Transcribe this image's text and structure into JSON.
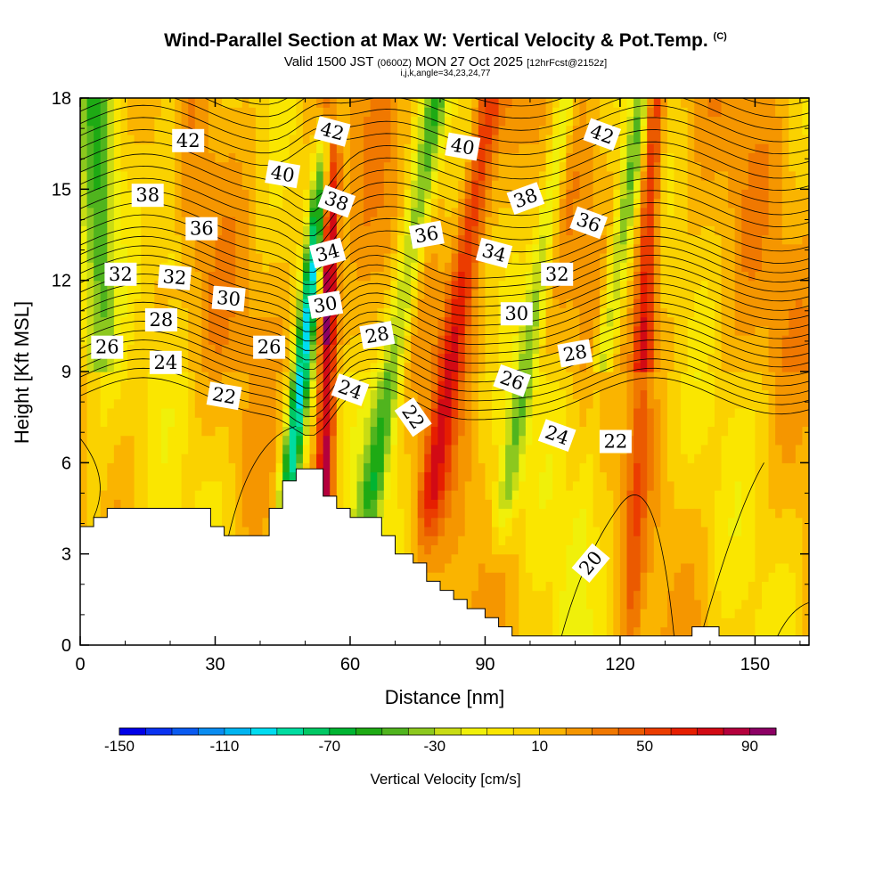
{
  "title": "Wind-Parallel Section at Max W: Vertical Velocity & Pot.Temp.",
  "title_mark": "(C)",
  "valid": {
    "prefix": "Valid 1500 JST",
    "utc": "(0600Z)",
    "date": "MON 27 Oct 2025",
    "fcst": "[12hrFcst@2152z]"
  },
  "params": "i,j,k,angle=34,23,24,77",
  "chart_data": {
    "type": "heatmap",
    "xlabel": "Distance [nm]",
    "ylabel": "Height [Kft MSL]",
    "xlim": [
      0,
      162
    ],
    "ylim": [
      0,
      18
    ],
    "xticks": [
      0,
      30,
      60,
      90,
      120,
      150
    ],
    "yticks": [
      0,
      3,
      6,
      9,
      12,
      15,
      18
    ],
    "colorbar": {
      "label": "Vertical Velocity [cm/s]",
      "min": -150,
      "max": 100,
      "step": 10,
      "tick_values": [
        -150,
        -110,
        -70,
        -30,
        10,
        50,
        90
      ],
      "tick_labels": [
        "-150",
        "-110",
        "-70",
        "-30",
        "10",
        "50",
        "90"
      ],
      "colors": [
        "#0000e8",
        "#0a32f0",
        "#0a5af0",
        "#0a8cf0",
        "#00b4f0",
        "#00dcf0",
        "#00dca0",
        "#00c864",
        "#00b432",
        "#1eaa14",
        "#50b41e",
        "#8cc81e",
        "#c8dc14",
        "#f0f00a",
        "#fae600",
        "#fad200",
        "#fab400",
        "#f59600",
        "#f07800",
        "#eb5a00",
        "#eb3c00",
        "#e61e00",
        "#d20a14",
        "#b4003c",
        "#8c0064",
        "#640082"
      ]
    },
    "contour_field": "Potential Temperature (C)",
    "contour_labels": [
      {
        "value": "42",
        "x": 24,
        "y": 16.6,
        "angle": 0
      },
      {
        "value": "42",
        "x": 56,
        "y": 16.9,
        "angle": 15
      },
      {
        "value": "42",
        "x": 116,
        "y": 16.8,
        "angle": 20
      },
      {
        "value": "40",
        "x": 45,
        "y": 15.5,
        "angle": 10
      },
      {
        "value": "40",
        "x": 85,
        "y": 16.4,
        "angle": 10
      },
      {
        "value": "38",
        "x": 15,
        "y": 14.8,
        "angle": 0
      },
      {
        "value": "38",
        "x": 57,
        "y": 14.6,
        "angle": 20
      },
      {
        "value": "38",
        "x": 99,
        "y": 14.7,
        "angle": -20
      },
      {
        "value": "36",
        "x": 27,
        "y": 13.7,
        "angle": 0
      },
      {
        "value": "36",
        "x": 77,
        "y": 13.5,
        "angle": -10
      },
      {
        "value": "36",
        "x": 113,
        "y": 13.9,
        "angle": 20
      },
      {
        "value": "34",
        "x": 55,
        "y": 12.9,
        "angle": -15
      },
      {
        "value": "34",
        "x": 92,
        "y": 12.9,
        "angle": 15
      },
      {
        "value": "32",
        "x": 9,
        "y": 12.2,
        "angle": 0
      },
      {
        "value": "32",
        "x": 21,
        "y": 12.1,
        "angle": 5
      },
      {
        "value": "32",
        "x": 106,
        "y": 12.2,
        "angle": 0
      },
      {
        "value": "30",
        "x": 33,
        "y": 11.4,
        "angle": 5
      },
      {
        "value": "30",
        "x": 54.5,
        "y": 11.2,
        "angle": -10
      },
      {
        "value": "30",
        "x": 97,
        "y": 10.9,
        "angle": 0
      },
      {
        "value": "28",
        "x": 18,
        "y": 10.7,
        "angle": 0
      },
      {
        "value": "28",
        "x": 66,
        "y": 10.2,
        "angle": -10
      },
      {
        "value": "28",
        "x": 110,
        "y": 9.6,
        "angle": -10
      },
      {
        "value": "26",
        "x": 6,
        "y": 9.8,
        "angle": 0
      },
      {
        "value": "26",
        "x": 42,
        "y": 9.8,
        "angle": 0
      },
      {
        "value": "26",
        "x": 96,
        "y": 8.7,
        "angle": 20
      },
      {
        "value": "24",
        "x": 19,
        "y": 9.3,
        "angle": 0
      },
      {
        "value": "24",
        "x": 60,
        "y": 8.4,
        "angle": 20
      },
      {
        "value": "24",
        "x": 106,
        "y": 6.9,
        "angle": 20
      },
      {
        "value": "22",
        "x": 32,
        "y": 8.2,
        "angle": 10
      },
      {
        "value": "22",
        "x": 74,
        "y": 7.5,
        "angle": 55
      },
      {
        "value": "22",
        "x": 119,
        "y": 6.7,
        "angle": 0
      },
      {
        "value": "20",
        "x": 113.5,
        "y": 2.7,
        "angle": -50
      }
    ],
    "terrain_top_kft": [
      [
        0,
        3.9
      ],
      [
        3,
        3.9
      ],
      [
        3,
        4.2
      ],
      [
        6,
        4.2
      ],
      [
        6,
        4.5
      ],
      [
        29,
        4.5
      ],
      [
        29,
        3.9
      ],
      [
        32,
        3.9
      ],
      [
        32,
        3.6
      ],
      [
        42,
        3.6
      ],
      [
        42,
        4.5
      ],
      [
        45,
        4.5
      ],
      [
        45,
        5.4
      ],
      [
        48,
        5.4
      ],
      [
        48,
        5.8
      ],
      [
        54,
        5.8
      ],
      [
        54,
        4.9
      ],
      [
        57,
        4.9
      ],
      [
        57,
        4.5
      ],
      [
        60,
        4.5
      ],
      [
        60,
        4.2
      ],
      [
        67,
        4.2
      ],
      [
        67,
        3.6
      ],
      [
        70,
        3.6
      ],
      [
        70,
        3.0
      ],
      [
        74,
        3.0
      ],
      [
        74,
        2.7
      ],
      [
        77,
        2.7
      ],
      [
        77,
        2.1
      ],
      [
        80,
        2.1
      ],
      [
        80,
        1.8
      ],
      [
        83,
        1.8
      ],
      [
        83,
        1.5
      ],
      [
        86,
        1.5
      ],
      [
        86,
        1.2
      ],
      [
        90,
        1.2
      ],
      [
        90,
        0.9
      ],
      [
        93,
        0.9
      ],
      [
        93,
        0.6
      ],
      [
        96,
        0.6
      ],
      [
        96,
        0.3
      ],
      [
        108,
        0.3
      ],
      [
        108,
        0.3
      ],
      [
        125,
        0.3
      ],
      [
        125,
        0.3
      ],
      [
        136,
        0.3
      ],
      [
        136,
        0.6
      ],
      [
        142,
        0.6
      ],
      [
        142,
        0.3
      ],
      [
        162,
        0.3
      ]
    ]
  }
}
